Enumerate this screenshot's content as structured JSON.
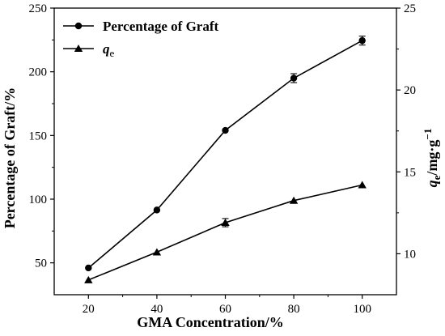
{
  "chart_data": {
    "type": "line",
    "x": [
      20,
      40,
      60,
      80,
      100
    ],
    "xlabel": "GMA Concentration/%",
    "xlim": [
      10,
      110
    ],
    "xticks": [
      "20",
      "40",
      "60",
      "80",
      "100"
    ],
    "ylabel_left": "Percentage of Graft/%",
    "ylim_left": [
      25,
      250
    ],
    "yticks_left": [
      "50",
      "100",
      "150",
      "200",
      "250"
    ],
    "ylabel_right": {
      "main": "q",
      "sub": "e",
      "rest": "/mg·g",
      "sup": "−1"
    },
    "ylim_right": [
      7.5,
      25
    ],
    "yticks_right": [
      "10",
      "15",
      "20",
      "25"
    ],
    "legend_position": "top-left",
    "series": [
      {
        "name": "Percentage of Graft",
        "axis": "left",
        "marker": "circle",
        "values": [
          46,
          91.5,
          154,
          195,
          224.5
        ],
        "errors": [
          0,
          0,
          0,
          3.5,
          3.5
        ]
      },
      {
        "name": {
          "main": "q",
          "sub": "e"
        },
        "axis": "right",
        "marker": "triangle",
        "values": [
          8.4,
          10.1,
          11.9,
          13.25,
          14.2
        ],
        "errors": [
          0,
          0,
          0.25,
          0,
          0
        ]
      }
    ]
  }
}
